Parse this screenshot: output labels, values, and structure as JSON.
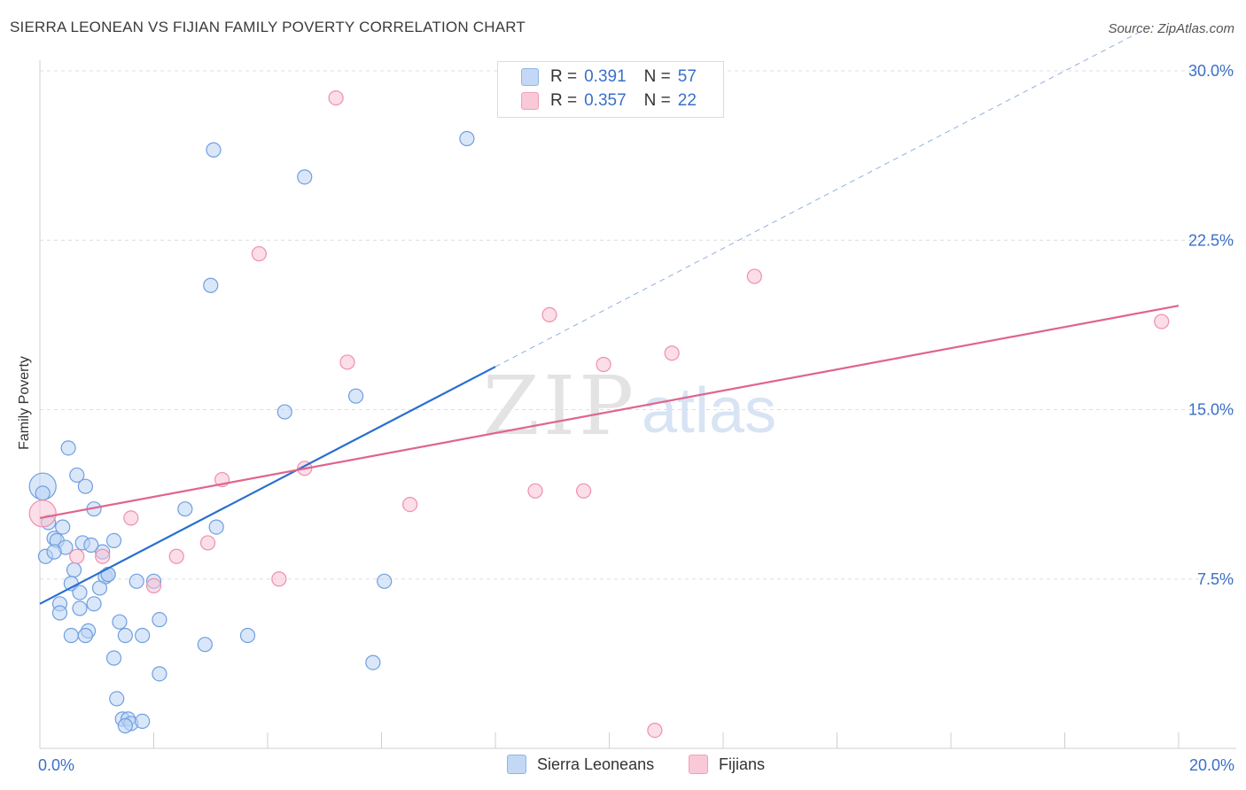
{
  "title": "SIERRA LEONEAN VS FIJIAN FAMILY POVERTY CORRELATION CHART",
  "source": "Source: ZipAtlas.com",
  "watermark": {
    "zip": "ZIP",
    "atlas": "atlas"
  },
  "legend": {
    "r_label": "R =",
    "n_label": "N =",
    "rows": [
      {
        "name": "Sierra Leoneans",
        "r": "0.391",
        "n": "57",
        "color": "#8fb4e8",
        "fill": "#c3d8f5"
      },
      {
        "name": "Fijians",
        "r": "0.357",
        "n": "22",
        "color": "#f0a0b8",
        "fill": "#f9c9d7"
      }
    ]
  },
  "chart_data": {
    "type": "scatter",
    "title": "SIERRA LEONEAN VS FIJIAN FAMILY POVERTY CORRELATION CHART",
    "xlabel": "",
    "ylabel": "Family Poverty",
    "xlim": [
      0,
      20
    ],
    "ylim": [
      0,
      30
    ],
    "x_tick_labels": [
      "0.0%",
      "20.0%"
    ],
    "y_ticks": [
      7.5,
      15.0,
      22.5,
      30.0
    ],
    "y_tick_labels": [
      "7.5%",
      "15.0%",
      "22.5%",
      "30.0%"
    ],
    "grid": true,
    "series": [
      {
        "name": "Sierra Leoneans",
        "color": "#6f9fe0",
        "fill": "#bcd4f4",
        "trend": {
          "x0": 0,
          "y0": 6.4,
          "x1": 8.0,
          "y1": 16.9,
          "dash_to_x": 19.3,
          "dash_to_y": 31.7,
          "color": "#2a6ed0"
        },
        "points": [
          {
            "x": 0.05,
            "y": 11.6,
            "big": true
          },
          {
            "x": 0.05,
            "y": 11.3
          },
          {
            "x": 0.15,
            "y": 10.0
          },
          {
            "x": 0.4,
            "y": 9.8
          },
          {
            "x": 0.5,
            "y": 13.3
          },
          {
            "x": 0.65,
            "y": 12.1
          },
          {
            "x": 0.8,
            "y": 11.6
          },
          {
            "x": 0.95,
            "y": 10.6
          },
          {
            "x": 0.25,
            "y": 9.3
          },
          {
            "x": 0.3,
            "y": 9.2
          },
          {
            "x": 0.45,
            "y": 8.9
          },
          {
            "x": 0.1,
            "y": 8.5
          },
          {
            "x": 0.25,
            "y": 8.7
          },
          {
            "x": 0.75,
            "y": 9.1
          },
          {
            "x": 1.3,
            "y": 9.2
          },
          {
            "x": 1.1,
            "y": 8.7
          },
          {
            "x": 0.6,
            "y": 7.9
          },
          {
            "x": 1.15,
            "y": 7.6
          },
          {
            "x": 1.2,
            "y": 7.7
          },
          {
            "x": 0.55,
            "y": 7.3
          },
          {
            "x": 0.7,
            "y": 6.9
          },
          {
            "x": 1.05,
            "y": 7.1
          },
          {
            "x": 0.35,
            "y": 6.4
          },
          {
            "x": 0.95,
            "y": 6.4
          },
          {
            "x": 0.7,
            "y": 6.2
          },
          {
            "x": 0.35,
            "y": 6.0
          },
          {
            "x": 1.4,
            "y": 5.6
          },
          {
            "x": 0.85,
            "y": 5.2
          },
          {
            "x": 0.55,
            "y": 5.0
          },
          {
            "x": 0.8,
            "y": 5.0
          },
          {
            "x": 1.5,
            "y": 5.0
          },
          {
            "x": 1.8,
            "y": 5.0
          },
          {
            "x": 1.7,
            "y": 7.4
          },
          {
            "x": 2.0,
            "y": 7.4
          },
          {
            "x": 2.1,
            "y": 5.7
          },
          {
            "x": 1.3,
            "y": 4.0
          },
          {
            "x": 2.1,
            "y": 3.3
          },
          {
            "x": 1.35,
            "y": 2.2
          },
          {
            "x": 1.45,
            "y": 1.3
          },
          {
            "x": 1.55,
            "y": 1.3
          },
          {
            "x": 1.6,
            "y": 1.1
          },
          {
            "x": 1.8,
            "y": 1.2
          },
          {
            "x": 1.5,
            "y": 1.0
          },
          {
            "x": 2.55,
            "y": 10.6
          },
          {
            "x": 3.1,
            "y": 9.8
          },
          {
            "x": 2.9,
            "y": 4.6
          },
          {
            "x": 3.65,
            "y": 5.0
          },
          {
            "x": 4.3,
            "y": 14.9
          },
          {
            "x": 5.55,
            "y": 15.6
          },
          {
            "x": 6.05,
            "y": 7.4
          },
          {
            "x": 5.85,
            "y": 3.8
          },
          {
            "x": 3.0,
            "y": 20.5
          },
          {
            "x": 3.05,
            "y": 26.5
          },
          {
            "x": 4.65,
            "y": 25.3
          },
          {
            "x": 7.5,
            "y": 27.0
          },
          {
            "x": 1.2,
            "y": 7.7
          },
          {
            "x": 0.9,
            "y": 9.0
          }
        ]
      },
      {
        "name": "Fijians",
        "color": "#f08fae",
        "fill": "#f8c3d3",
        "trend": {
          "x0": 0,
          "y0": 10.2,
          "x1": 20,
          "y1": 19.6,
          "color": "#e0648e"
        },
        "points": [
          {
            "x": 0.05,
            "y": 10.4,
            "big": true
          },
          {
            "x": 1.6,
            "y": 10.2
          },
          {
            "x": 1.1,
            "y": 8.5
          },
          {
            "x": 0.65,
            "y": 8.5
          },
          {
            "x": 2.4,
            "y": 8.5
          },
          {
            "x": 2.95,
            "y": 9.1
          },
          {
            "x": 2.0,
            "y": 7.2
          },
          {
            "x": 3.2,
            "y": 11.9
          },
          {
            "x": 4.2,
            "y": 7.5
          },
          {
            "x": 4.65,
            "y": 12.4
          },
          {
            "x": 5.4,
            "y": 17.1
          },
          {
            "x": 5.2,
            "y": 28.8
          },
          {
            "x": 3.85,
            "y": 21.9
          },
          {
            "x": 6.5,
            "y": 10.8
          },
          {
            "x": 8.7,
            "y": 11.4
          },
          {
            "x": 8.95,
            "y": 19.2
          },
          {
            "x": 9.55,
            "y": 11.4
          },
          {
            "x": 9.9,
            "y": 17.0
          },
          {
            "x": 11.1,
            "y": 17.5
          },
          {
            "x": 12.55,
            "y": 20.9
          },
          {
            "x": 10.8,
            "y": 0.8
          },
          {
            "x": 19.7,
            "y": 18.9
          }
        ]
      }
    ]
  }
}
